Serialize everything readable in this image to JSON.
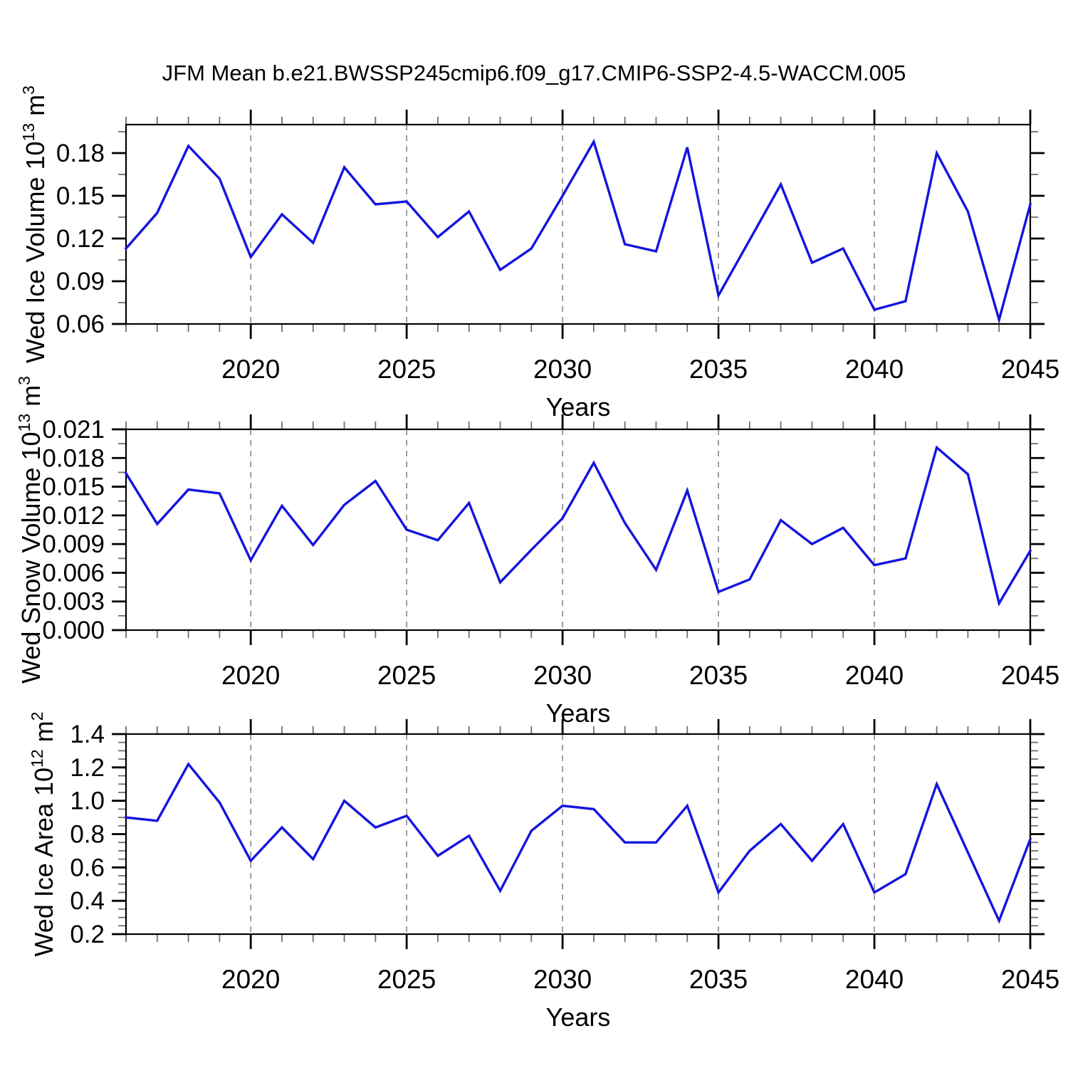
{
  "title": "JFM Mean b.e21.BWSSP245cmip6.f09_g17.CMIP6-SSP2-4.5-WACCM.005",
  "line_color": "#1414e0",
  "grid_color": "#808080",
  "chart_data": [
    {
      "type": "line",
      "title": "",
      "ylabel": "Wed Ice Volume 10^{13} m^{3}",
      "xlabel": "Years",
      "ylim": [
        0.06,
        0.2
      ],
      "xlim": [
        2016,
        2045
      ],
      "yticks": [
        0.18,
        0.15,
        0.12,
        0.09,
        0.06
      ],
      "ytick_labels": [
        "0.18",
        "0.15",
        "0.12",
        "0.09",
        "0.06"
      ],
      "yminor_step": 0.015,
      "xticks": [
        2020,
        2025,
        2030,
        2035,
        2040,
        2045
      ],
      "xtick_labels": [
        "2020",
        "2025",
        "2030",
        "2035",
        "2040",
        "2045"
      ],
      "grid_years": [
        2020,
        2025,
        2030,
        2035,
        2040
      ],
      "grid_on": true,
      "legend": null,
      "years": [
        2016,
        2017,
        2018,
        2019,
        2020,
        2021,
        2022,
        2023,
        2024,
        2025,
        2026,
        2027,
        2028,
        2029,
        2030,
        2031,
        2032,
        2033,
        2034,
        2035,
        2036,
        2037,
        2038,
        2039,
        2040,
        2041,
        2042,
        2043,
        2044,
        2045
      ],
      "values": [
        0.113,
        0.138,
        0.185,
        0.162,
        0.107,
        0.137,
        0.117,
        0.17,
        0.144,
        0.146,
        0.121,
        0.139,
        0.098,
        0.113,
        0.15,
        0.188,
        0.116,
        0.111,
        0.184,
        0.08,
        0.119,
        0.158,
        0.103,
        0.113,
        0.07,
        0.076,
        0.18,
        0.139,
        0.063,
        0.144
      ]
    },
    {
      "type": "line",
      "title": "",
      "ylabel": "Wed Snow Volume 10^{13} m^{3}",
      "xlabel": "Years",
      "ylim": [
        0.0,
        0.021
      ],
      "xlim": [
        2016,
        2045
      ],
      "yticks": [
        0.021,
        0.018,
        0.015,
        0.012,
        0.009,
        0.006,
        0.003,
        0.0
      ],
      "ytick_labels": [
        "0.021",
        "0.018",
        "0.015",
        "0.012",
        "0.009",
        "0.006",
        "0.003",
        "0.000"
      ],
      "yminor_step": 0.0015,
      "xticks": [
        2020,
        2025,
        2030,
        2035,
        2040,
        2045
      ],
      "xtick_labels": [
        "2020",
        "2025",
        "2030",
        "2035",
        "2040",
        "2045"
      ],
      "grid_years": [
        2020,
        2025,
        2030,
        2035,
        2040
      ],
      "grid_on": true,
      "legend": null,
      "years": [
        2016,
        2017,
        2018,
        2019,
        2020,
        2021,
        2022,
        2023,
        2024,
        2025,
        2026,
        2027,
        2028,
        2029,
        2030,
        2031,
        2032,
        2033,
        2034,
        2035,
        2036,
        2037,
        2038,
        2039,
        2040,
        2041,
        2042,
        2043,
        2044,
        2045
      ],
      "values": [
        0.0164,
        0.0111,
        0.0147,
        0.0143,
        0.0073,
        0.013,
        0.0089,
        0.0131,
        0.0156,
        0.0105,
        0.0094,
        0.0133,
        0.005,
        0.0084,
        0.0117,
        0.0175,
        0.0112,
        0.0063,
        0.0146,
        0.004,
        0.0053,
        0.0115,
        0.009,
        0.0107,
        0.0068,
        0.0075,
        0.0191,
        0.0163,
        0.0028,
        0.0083
      ]
    },
    {
      "type": "line",
      "title": "",
      "ylabel": "Wed Ice Area 10^{12} m^{2}",
      "xlabel": "Years",
      "ylim": [
        0.2,
        1.4
      ],
      "xlim": [
        2016,
        2045
      ],
      "yticks": [
        1.4,
        1.2,
        1.0,
        0.8,
        0.6,
        0.4,
        0.2
      ],
      "ytick_labels": [
        "1.4",
        "1.2",
        "1.0",
        "0.8",
        "0.6",
        "0.4",
        "0.2"
      ],
      "yminor_step": 0.05,
      "xticks": [
        2020,
        2025,
        2030,
        2035,
        2040,
        2045
      ],
      "xtick_labels": [
        "2020",
        "2025",
        "2030",
        "2035",
        "2040",
        "2045"
      ],
      "grid_years": [
        2020,
        2025,
        2030,
        2035,
        2040
      ],
      "grid_on": true,
      "legend": null,
      "years": [
        2016,
        2017,
        2018,
        2019,
        2020,
        2021,
        2022,
        2023,
        2024,
        2025,
        2026,
        2027,
        2028,
        2029,
        2030,
        2031,
        2032,
        2033,
        2034,
        2035,
        2036,
        2037,
        2038,
        2039,
        2040,
        2041,
        2042,
        2043,
        2044,
        2045
      ],
      "values": [
        0.9,
        0.88,
        1.22,
        0.99,
        0.64,
        0.84,
        0.65,
        1.0,
        0.84,
        0.91,
        0.67,
        0.79,
        0.46,
        0.82,
        0.97,
        0.95,
        0.75,
        0.75,
        0.97,
        0.45,
        0.7,
        0.86,
        0.64,
        0.86,
        0.45,
        0.56,
        1.1,
        0.69,
        0.28,
        0.77
      ]
    }
  ]
}
